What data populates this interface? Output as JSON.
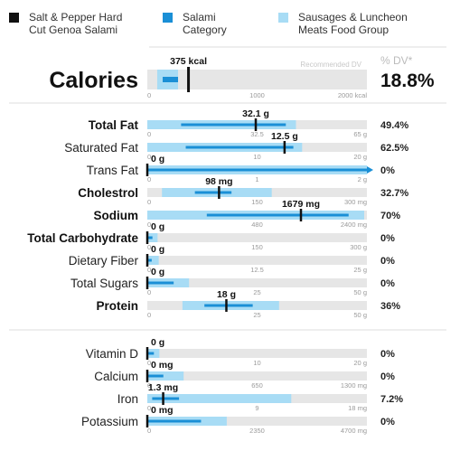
{
  "legend": [
    {
      "label_lines": [
        "Salt & Pepper Hard",
        "Cut Genoa Salami"
      ],
      "color": "#111111",
      "icon": "square-icon"
    },
    {
      "label_lines": [
        "Salami",
        "Category"
      ],
      "color": "#1a8fd6",
      "icon": "square-icon"
    },
    {
      "label_lines": [
        "Sausages & Luncheon",
        "Meats Food Group"
      ],
      "color": "#a8dcf5",
      "icon": "square-icon"
    }
  ],
  "header": {
    "percent_dv_label": "% DV*",
    "recommended_dv_label": "Recommended DV"
  },
  "colors": {
    "track": "#e6e6e6",
    "group_range": "#a8dcf5",
    "category_range": "#1a8fd6",
    "marker": "#111111"
  },
  "chart_data": {
    "type": "range-bar",
    "calories": {
      "label": "Calories",
      "value": 375,
      "value_label": "375 kcal",
      "max": 2000,
      "ticks": [
        "0",
        "1000",
        "2000 kcal"
      ],
      "group_range": [
        90,
        280
      ],
      "category_range": [
        140,
        280
      ],
      "dv": "18.8%"
    },
    "sections": [
      [
        {
          "label": "Total Fat",
          "bold": true,
          "value": 32.1,
          "value_label": "32.1 g",
          "max": 65,
          "ticks": [
            "0",
            "32.5",
            "65 g"
          ],
          "group_range": [
            0,
            44
          ],
          "category_range": [
            10,
            41
          ],
          "dv": "49.4%"
        },
        {
          "label": "Saturated Fat",
          "bold": false,
          "value": 12.5,
          "value_label": "12.5 g",
          "max": 20,
          "ticks": [
            "0",
            "10",
            "20 g"
          ],
          "group_range": [
            0,
            14.1
          ],
          "category_range": [
            3.5,
            13.3
          ],
          "dv": "62.5%"
        },
        {
          "label": "Trans Fat",
          "bold": false,
          "value": 0,
          "value_label": "0 g",
          "max": 2,
          "ticks": [
            "0",
            "1",
            "2 g"
          ],
          "group_range": [
            0,
            2
          ],
          "category_range": [
            0,
            2
          ],
          "arrow": true,
          "dv": "0%"
        },
        {
          "label": "Cholestrol",
          "bold": true,
          "value": 98,
          "value_label": "98 mg",
          "max": 300,
          "ticks": [
            "0",
            "150",
            "300 mg"
          ],
          "group_range": [
            20,
            170
          ],
          "category_range": [
            65,
            115
          ],
          "dv": "32.7%"
        },
        {
          "label": "Sodium",
          "bold": true,
          "value": 1679,
          "value_label": "1679 mg",
          "max": 2400,
          "ticks": [
            "0",
            "480",
            "2400 mg"
          ],
          "group_range": [
            0,
            2370
          ],
          "category_range": [
            650,
            2200
          ],
          "dv": "70%"
        },
        {
          "label": "Total Carbohydrate",
          "bold": true,
          "value": 0,
          "value_label": "0 g",
          "max": 300,
          "ticks": [
            "0",
            "150",
            "300 g"
          ],
          "group_range": [
            0,
            14
          ],
          "category_range": [
            0,
            7
          ],
          "dv": "0%"
        },
        {
          "label": "Dietary Fiber",
          "bold": false,
          "value": 0,
          "value_label": "0 g",
          "max": 25,
          "ticks": [
            "0",
            "12.5",
            "25 g"
          ],
          "group_range": [
            0,
            1.3
          ],
          "category_range": [
            0,
            0.5
          ],
          "dv": "0%"
        },
        {
          "label": "Total Sugars",
          "bold": false,
          "value": 0,
          "value_label": "0 g",
          "max": 50,
          "ticks": [
            "0",
            "25",
            "50 g"
          ],
          "group_range": [
            0,
            9.5
          ],
          "category_range": [
            0,
            6
          ],
          "dv": "0%"
        },
        {
          "label": "Protein",
          "bold": true,
          "value": 18,
          "value_label": "18 g",
          "max": 50,
          "ticks": [
            "0",
            "25",
            "50 g"
          ],
          "group_range": [
            8,
            30
          ],
          "category_range": [
            13,
            24
          ],
          "dv": "36%"
        }
      ],
      [
        {
          "label": "Vitamin D",
          "bold": false,
          "value": 0,
          "value_label": "0 g",
          "max": 20,
          "ticks": [
            "0",
            "10",
            "20 g"
          ],
          "group_range": [
            0,
            1.1
          ],
          "category_range": [
            0,
            0.6
          ],
          "dv": "0%"
        },
        {
          "label": "Calcium",
          "bold": false,
          "value": 0,
          "value_label": "0 mg",
          "max": 1300,
          "ticks": [
            "0",
            "650",
            "1300 mg"
          ],
          "group_range": [
            0,
            215
          ],
          "category_range": [
            0,
            95
          ],
          "dv": "0%"
        },
        {
          "label": "Iron",
          "bold": false,
          "value": 1.3,
          "value_label": "1.3 mg",
          "max": 18,
          "ticks": [
            "0",
            "9",
            "18 mg"
          ],
          "group_range": [
            0,
            11.8
          ],
          "category_range": [
            0.4,
            2.6
          ],
          "dv": "7.2%"
        },
        {
          "label": "Potassium",
          "bold": false,
          "value": 0,
          "value_label": "0 mg",
          "max": 4700,
          "ticks": [
            "0",
            "2350",
            "4700 mg"
          ],
          "group_range": [
            0,
            1700
          ],
          "category_range": [
            0,
            1150
          ],
          "dv": "0%"
        }
      ]
    ]
  }
}
